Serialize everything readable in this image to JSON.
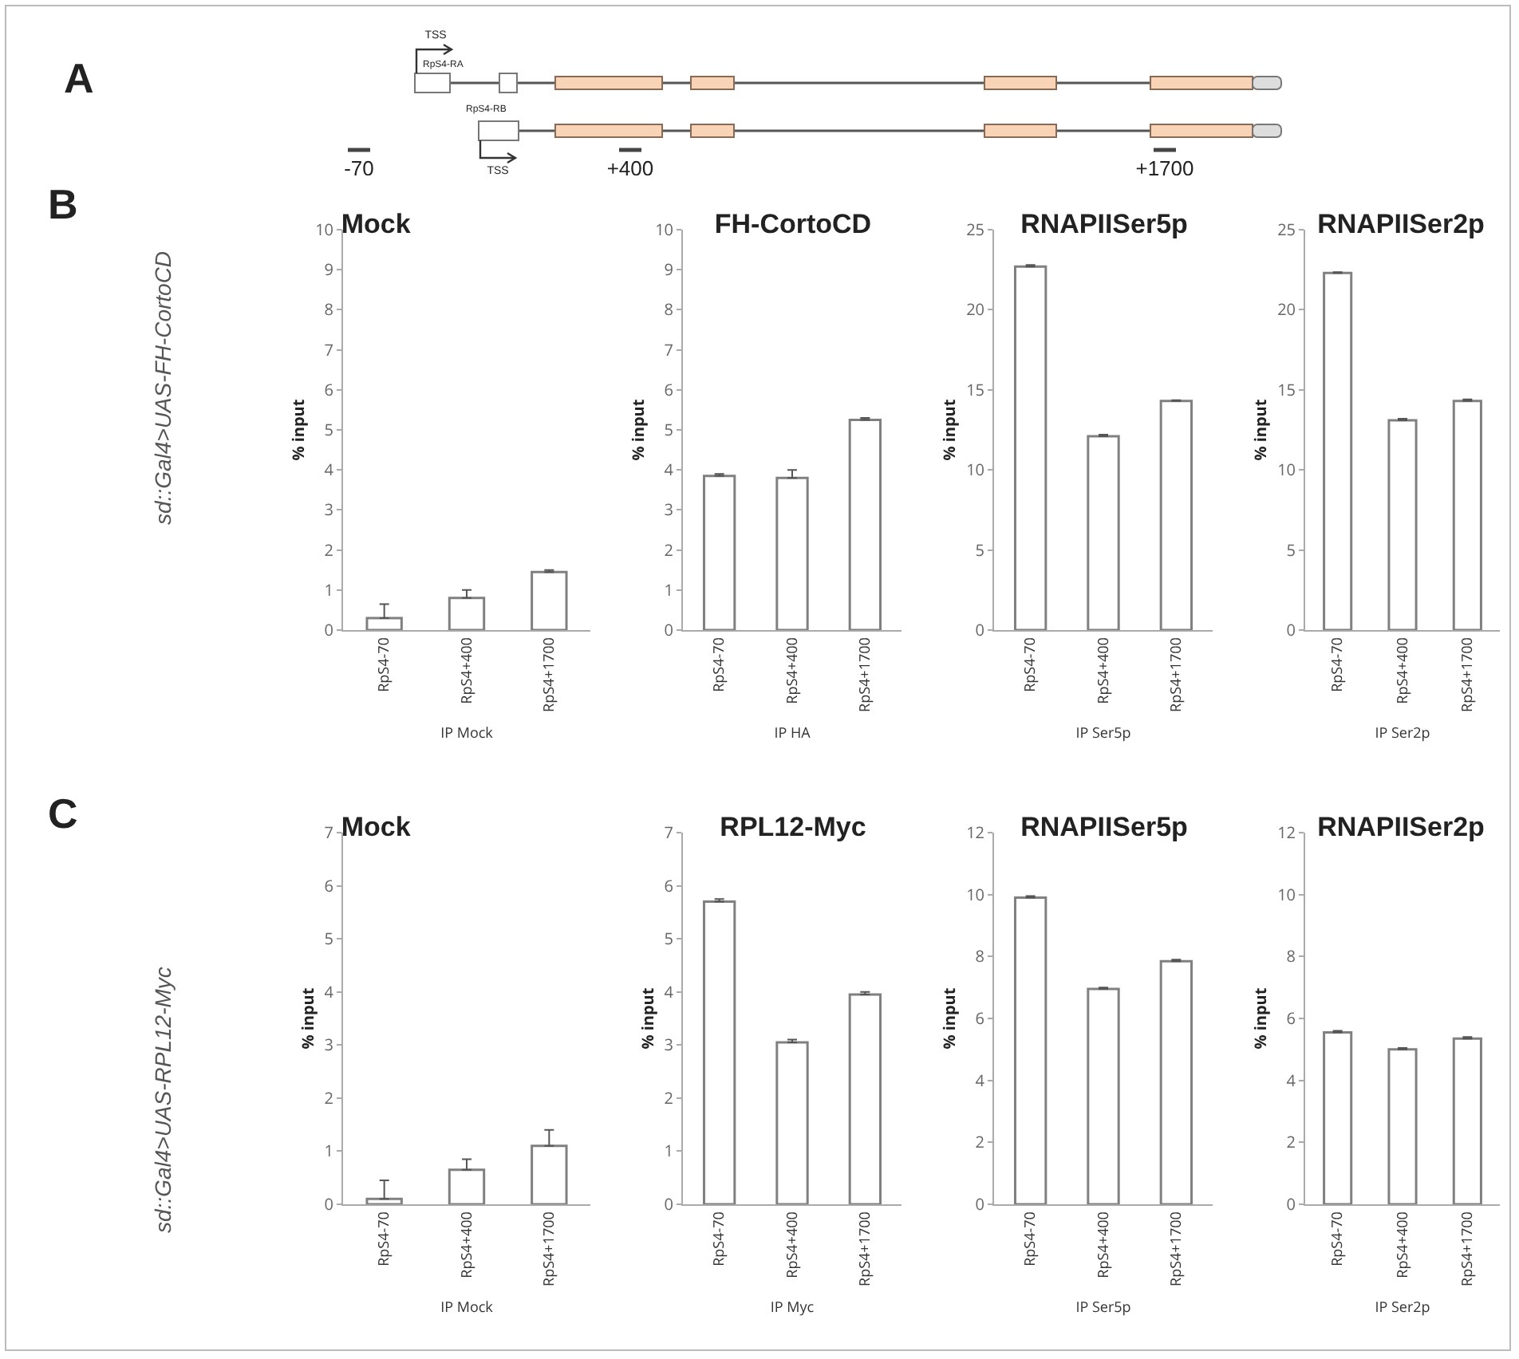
{
  "chart_data": [
    {
      "type": "other",
      "annotations": [
        "A",
        "TSS",
        "RpS4-RA",
        "RpS4-RB",
        "TSS",
        "-70",
        "+400",
        "+1700"
      ]
    },
    {
      "type": "bar",
      "title": "Mock",
      "annotations": [
        "B",
        "sd::Gal4>UAS-FH-CortoCD"
      ],
      "categories": [
        "RpS4-70",
        "RpS4+400",
        "RpS4+1700"
      ],
      "values": [
        0.3,
        0.8,
        1.45
      ],
      "errors": [
        [
          0.3,
          0.65
        ],
        [
          0.8,
          1.0
        ],
        [
          1.45,
          1.5
        ]
      ],
      "color": "#ffffff",
      "xlabel": "IP Mock",
      "ylabel": "% input",
      "ylim": [
        0,
        10
      ],
      "yticks": [
        0,
        1,
        2,
        3,
        4,
        5,
        6,
        7,
        8,
        9,
        10
      ]
    },
    {
      "type": "bar",
      "title": "FH-CortoCD",
      "categories": [
        "RpS4-70",
        "RpS4+400",
        "RpS4+1700"
      ],
      "values": [
        3.85,
        3.8,
        5.25
      ],
      "errors": [
        [
          3.85,
          3.9
        ],
        [
          3.8,
          4.0
        ],
        [
          5.25,
          5.3
        ]
      ],
      "color": "#ffffff",
      "xlabel": "IP HA",
      "ylabel": "% input",
      "ylim": [
        0,
        10
      ],
      "yticks": [
        0,
        1,
        2,
        3,
        4,
        5,
        6,
        7,
        8,
        9,
        10
      ]
    },
    {
      "type": "bar",
      "title": "RNAPIISer5p",
      "categories": [
        "RpS4-70",
        "RpS4+400",
        "RpS4+1700"
      ],
      "values": [
        22.7,
        12.1,
        14.3
      ],
      "errors": [
        [
          22.7,
          22.8
        ],
        [
          12.1,
          12.2
        ],
        [
          14.3,
          14.35
        ]
      ],
      "color": "#ffffff",
      "xlabel": "IP Ser5p",
      "ylabel": "% input",
      "ylim": [
        0,
        25
      ],
      "yticks": [
        0,
        5,
        10,
        15,
        20,
        25
      ]
    },
    {
      "type": "bar",
      "title": "RNAPIISer2p",
      "categories": [
        "RpS4-70",
        "RpS4+400",
        "RpS4+1700"
      ],
      "values": [
        22.3,
        13.1,
        14.3
      ],
      "errors": [
        [
          22.3,
          22.35
        ],
        [
          13.1,
          13.2
        ],
        [
          14.3,
          14.4
        ]
      ],
      "color": "#ffffff",
      "xlabel": "IP Ser2p",
      "ylabel": "% input",
      "ylim": [
        0,
        25
      ],
      "yticks": [
        0,
        5,
        10,
        15,
        20,
        25
      ]
    },
    {
      "type": "bar",
      "title": "Mock",
      "annotations": [
        "C",
        "sd::Gal4>UAS-RPL12-Myc"
      ],
      "categories": [
        "RpS4-70",
        "RpS4+400",
        "RpS4+1700"
      ],
      "values": [
        0.1,
        0.65,
        1.1
      ],
      "errors": [
        [
          0.1,
          0.45
        ],
        [
          0.65,
          0.85
        ],
        [
          1.1,
          1.4
        ]
      ],
      "color": "#ffffff",
      "xlabel": "IP Mock",
      "ylabel": "% input",
      "ylim": [
        0,
        7
      ],
      "yticks": [
        0,
        1,
        2,
        3,
        4,
        5,
        6,
        7
      ]
    },
    {
      "type": "bar",
      "title": "RPL12-Myc",
      "categories": [
        "RpS4-70",
        "RpS4+400",
        "RpS4+1700"
      ],
      "values": [
        5.7,
        3.05,
        3.95
      ],
      "errors": [
        [
          5.7,
          5.75
        ],
        [
          3.05,
          3.1
        ],
        [
          3.95,
          4.0
        ]
      ],
      "color": "#ffffff",
      "xlabel": "IP Myc",
      "ylabel": "% input",
      "ylim": [
        0,
        7
      ],
      "yticks": [
        0,
        1,
        2,
        3,
        4,
        5,
        6,
        7
      ]
    },
    {
      "type": "bar",
      "title": "RNAPIISer5p",
      "categories": [
        "RpS4-70",
        "RpS4+400",
        "RpS4+1700"
      ],
      "values": [
        9.9,
        6.95,
        7.85
      ],
      "errors": [
        [
          9.9,
          9.95
        ],
        [
          6.95,
          7.0
        ],
        [
          7.85,
          7.9
        ]
      ],
      "color": "#ffffff",
      "xlabel": "IP Ser5p",
      "ylabel": "% input",
      "ylim": [
        0,
        12
      ],
      "yticks": [
        0,
        2,
        4,
        6,
        8,
        10,
        12
      ]
    },
    {
      "type": "bar",
      "title": "RNAPIISer2p",
      "categories": [
        "RpS4-70",
        "RpS4+400",
        "RpS4+1700"
      ],
      "values": [
        5.55,
        5.0,
        5.35
      ],
      "errors": [
        [
          5.55,
          5.6
        ],
        [
          5.0,
          5.05
        ],
        [
          5.35,
          5.4
        ]
      ],
      "color": "#ffffff",
      "xlabel": "IP Ser2p",
      "ylabel": "% input",
      "ylim": [
        0,
        12
      ],
      "yticks": [
        0,
        2,
        4,
        6,
        8,
        10,
        12
      ]
    }
  ]
}
